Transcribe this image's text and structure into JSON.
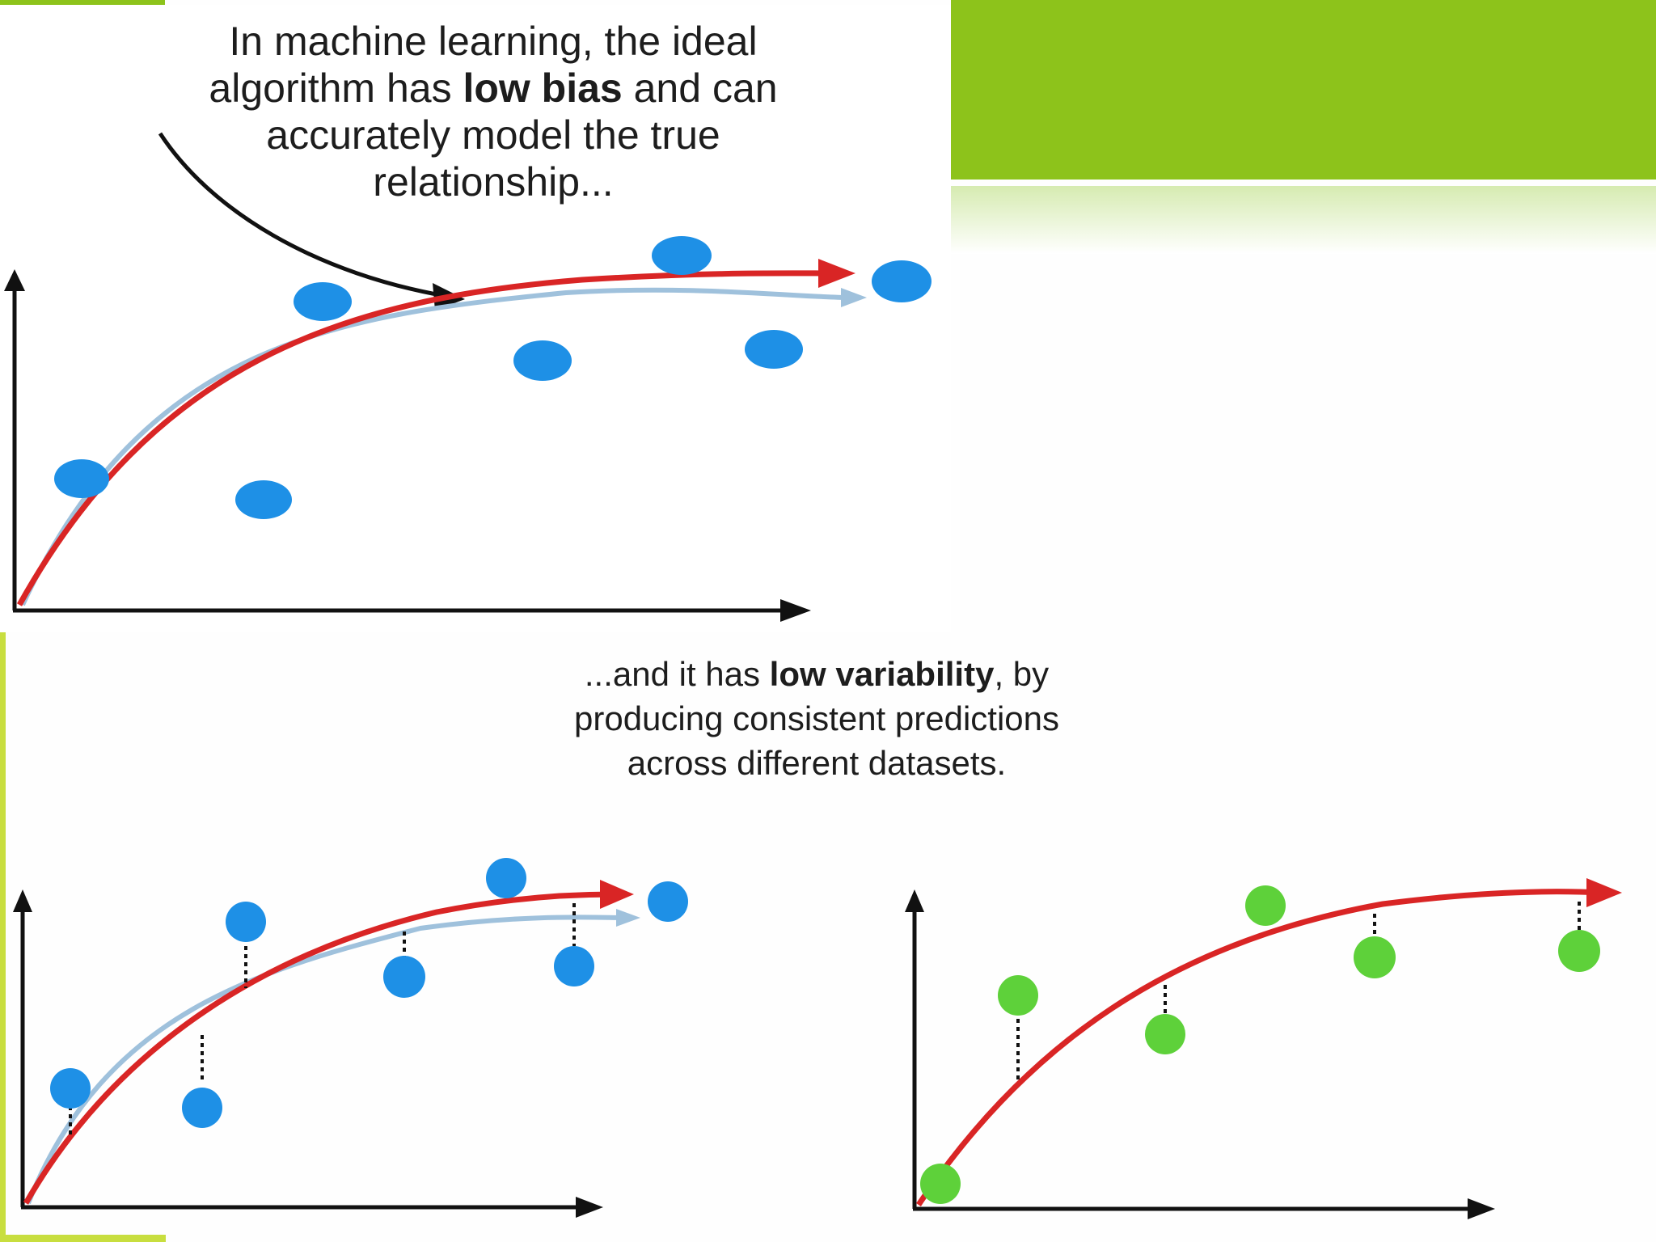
{
  "captions": {
    "top": {
      "line1": "In machine learning, the ideal",
      "line2_pre": "algorithm has ",
      "line2_bold": "low bias",
      "line2_post": " and can",
      "line3": "accurately model the true",
      "line4": "relationship..."
    },
    "bottom": {
      "line1_pre": "...and it has ",
      "line1_bold": "low variability",
      "line1_post": ", by",
      "line2": "producing consistent predictions",
      "line3": "across different datasets."
    }
  },
  "colors": {
    "accent_green": "#8dc31b",
    "point_blue": "#1e90e6",
    "point_green": "#5ed13a",
    "fit_curve": "#d92525",
    "true_curve": "#9fc1dc",
    "axis": "#111111"
  },
  "panels": [
    {
      "id": "top",
      "points": "blue",
      "true_curve": true,
      "residuals": false
    },
    {
      "id": "bottom-left",
      "points": "blue",
      "true_curve": true,
      "residuals": true
    },
    {
      "id": "bottom-right",
      "points": "green",
      "true_curve": false,
      "residuals": true
    }
  ]
}
